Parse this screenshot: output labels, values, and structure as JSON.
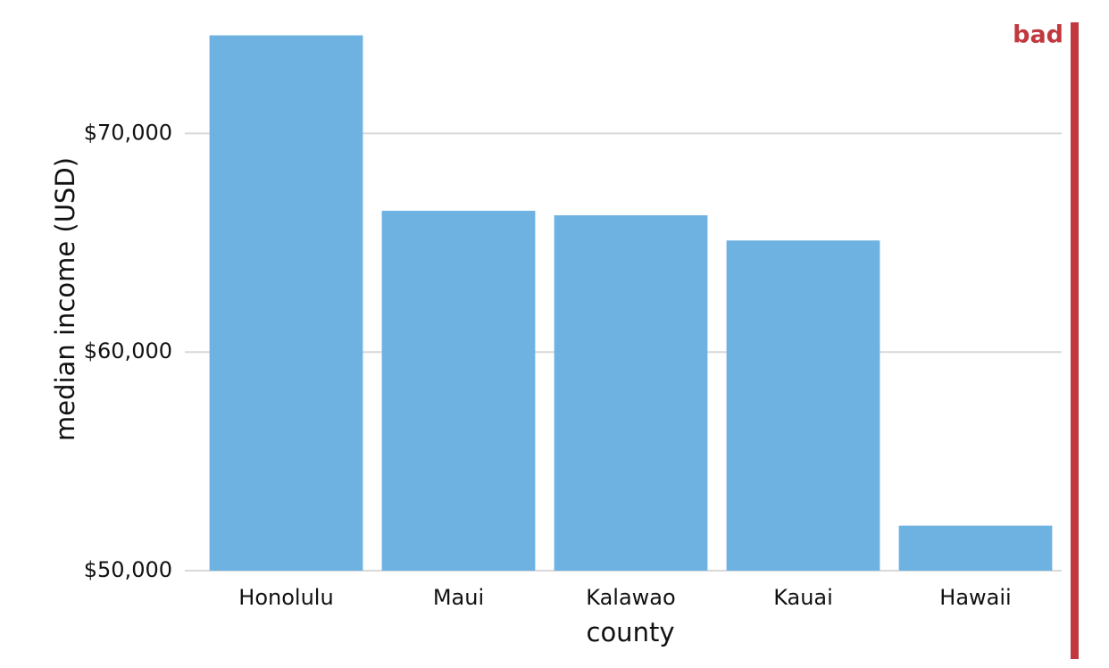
{
  "chart_data": {
    "type": "bar",
    "annotation": "bad",
    "x_label": "county",
    "y_label": "median income (USD)",
    "categories": [
      "Honolulu",
      "Maui",
      "Kalawao",
      "Kauai",
      "Hawaii"
    ],
    "values": [
      74486,
      66461,
      66255,
      65103,
      52058
    ],
    "color": "#6eb2e2",
    "ylim": [
      50000,
      75000
    ],
    "yticks": [
      {
        "value": 50000,
        "label": "$50,000"
      },
      {
        "value": 60000,
        "label": "$60,000"
      },
      {
        "value": 70000,
        "label": "$70,000"
      }
    ],
    "grid": true
  }
}
